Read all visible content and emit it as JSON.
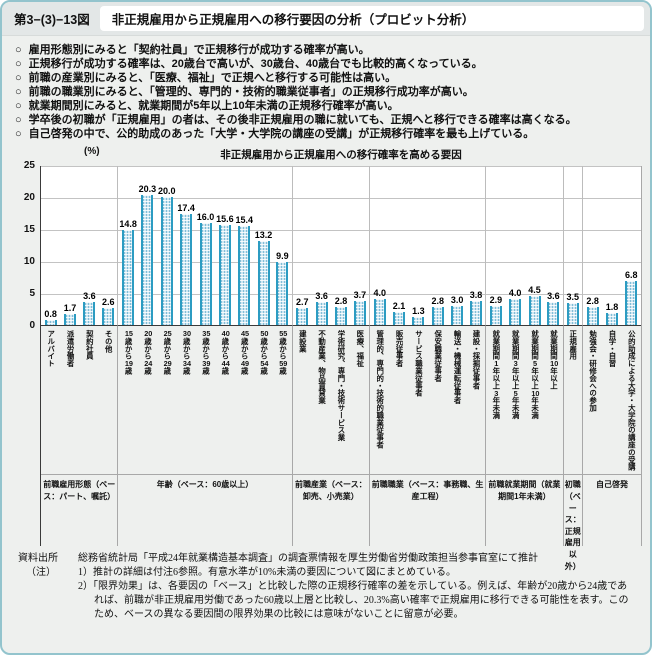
{
  "header": {
    "figure_no": "第3−(3)−13図",
    "title": "非正規雇用から正規雇用への移行要因の分析（プロビット分析）"
  },
  "bullet_mark": "○",
  "bullets": [
    "雇用形態別にみると「契約社員」で正規移行が成功する確率が高い。",
    "正規移行が成功する確率は、20歳台で高いが、30歳台、40歳台でも比較的高くなっている。",
    "前職の産業別にみると、「医療、福祉」で正規へと移行する可能性は高い。",
    "前職の職業別にみると、「管理的、専門的・技術的職業従事者」の正規移行成功率が高い。",
    "就業期間別にみると、就業期間が5年以上10年未満の正規移行確率が高い。",
    "学卒後の初職が「正規雇用」の者は、その後非正規雇用の職に就いても、正規へと移行できる確率は高くなる。",
    "自己啓発の中で、公的助成のあった「大学・大学院の講座の受講」が正規移行確率を最も上げている。"
  ],
  "chart_data": {
    "type": "bar",
    "title": "非正規雇用から正規雇用への移行確率を高める要因",
    "unit_label": "(%)",
    "ylim": [
      0,
      25
    ],
    "ytick_labels": [
      "25",
      "20",
      "15",
      "10",
      "5",
      "0"
    ],
    "grid": true,
    "groups": [
      {
        "label": "前職雇用形態（ベース：パート、嘱託）",
        "bars": [
          {
            "label": "アルバイト",
            "value": 0.8
          },
          {
            "label": "派遣労働者",
            "value": 1.7
          },
          {
            "label": "契約社員",
            "value": 3.6
          },
          {
            "label": "その他",
            "value": 2.6
          }
        ]
      },
      {
        "label": "年齢（ベース：60歳以上）",
        "bars": [
          {
            "label": "15歳から19歳",
            "value": 14.8
          },
          {
            "label": "20歳から24歳",
            "value": 20.3
          },
          {
            "label": "25歳から29歳",
            "value": 20.0
          },
          {
            "label": "30歳から34歳",
            "value": 17.4
          },
          {
            "label": "35歳から39歳",
            "value": 16.0
          },
          {
            "label": "40歳から44歳",
            "value": 15.6
          },
          {
            "label": "45歳から49歳",
            "value": 15.4
          },
          {
            "label": "50歳から54歳",
            "value": 13.2
          },
          {
            "label": "55歳から59歳",
            "value": 9.9
          }
        ]
      },
      {
        "label": "前職産業（ベース：卸売、小売業）",
        "bars": [
          {
            "label": "建設業",
            "value": 2.7
          },
          {
            "label": "不動産業、物品賃貸業",
            "value": 3.6
          },
          {
            "label": "学術研究、専門・技術サービス業",
            "value": 2.8
          },
          {
            "label": "医療、福祉",
            "value": 3.7
          }
        ]
      },
      {
        "label": "前職職業（ベース：事務職、生産工程）",
        "bars": [
          {
            "label": "管理的、専門的・技術的職業従事者",
            "value": 4.0
          },
          {
            "label": "販売従事者",
            "value": 2.1
          },
          {
            "label": "サービス職業従事者",
            "value": 1.3
          },
          {
            "label": "保安職業従事者",
            "value": 2.8
          },
          {
            "label": "輸送・機械運転従事者",
            "value": 3.0
          },
          {
            "label": "建設・採掘従事者",
            "value": 3.8
          }
        ]
      },
      {
        "label": "前職就業期間（就業期間1年未満）",
        "bars": [
          {
            "label": "就業期間1年以上3年未満",
            "value": 2.9
          },
          {
            "label": "就業期間3年以上5年未満",
            "value": 4.0
          },
          {
            "label": "就業期間5年以上10年未満",
            "value": 4.5
          },
          {
            "label": "就業期間10年以上",
            "value": 3.6
          }
        ]
      },
      {
        "label": "初職（ベース：正規雇用以外）",
        "bars": [
          {
            "label": "正規雇用",
            "value": 3.5
          }
        ]
      },
      {
        "label": "自己啓発",
        "bars": [
          {
            "label": "勉強会・研修会への参加",
            "value": 2.8
          },
          {
            "label": "自学・自習",
            "value": 1.8
          },
          {
            "label": "公的助成による大学・大学院の講座の受講",
            "value": 6.8
          }
        ]
      }
    ]
  },
  "footer": {
    "source_label": "資料出所",
    "source": "総務省統計局「平成24年就業構造基本調査」の調査票情報を厚生労働省労働政策担当参事官室にて推計",
    "note_label": "（注）",
    "notes": [
      "1）推計の詳細は付注6参照。有意水準が10%未満の要因について図にまとめている。",
      "2）「限界効果」は、各要因の「ベース」と比較した際の正規移行確率の差を示している。例えば、年齢が20歳から24歳であれば、前職が非正規雇用労働であった60歳以上層と比較し、20.3%高い確率で正規雇用に移行できる可能性を表す。このため、ベースの異なる要因間の限界効果の比較には意味がないことに留意が必要。"
    ]
  },
  "colors": {
    "frame_border": "#93c4cd",
    "header_bg": "#e3e7e7",
    "body_bg": "#eef0ee",
    "bar_fill": "#cfe7f2",
    "bar_edge": "#2c9cc2"
  }
}
